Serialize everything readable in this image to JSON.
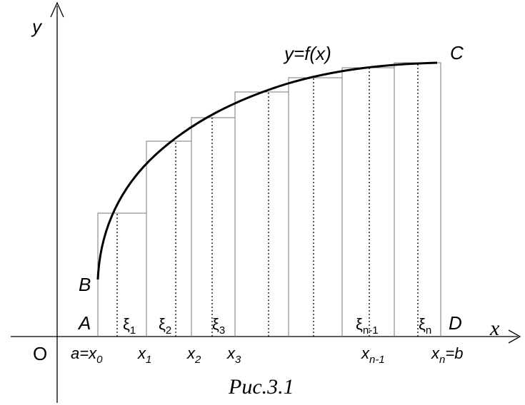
{
  "axes": {
    "y_label": "y",
    "x_label": "x",
    "origin_label": "O"
  },
  "curve_label": "y=f(x)",
  "points": {
    "A": "A",
    "B": "B",
    "C": "C",
    "D": "D"
  },
  "x_ticks": [
    {
      "base": "a=x",
      "sub": "0"
    },
    {
      "base": "x",
      "sub": "1"
    },
    {
      "base": "x",
      "sub": "2"
    },
    {
      "base": "x",
      "sub": "3"
    },
    {
      "base": "x",
      "sub": "n-1"
    },
    {
      "base": "x",
      "sub": "n",
      "suffix": "=b"
    }
  ],
  "xi_labels": [
    {
      "base": "ξ",
      "sub": "1"
    },
    {
      "base": "ξ",
      "sub": "2"
    },
    {
      "base": "ξ",
      "sub": "3"
    },
    {
      "base": "ξ",
      "sub": "n-1"
    },
    {
      "base": "ξ",
      "sub": "n"
    }
  ],
  "caption": "Рис.3.1"
}
